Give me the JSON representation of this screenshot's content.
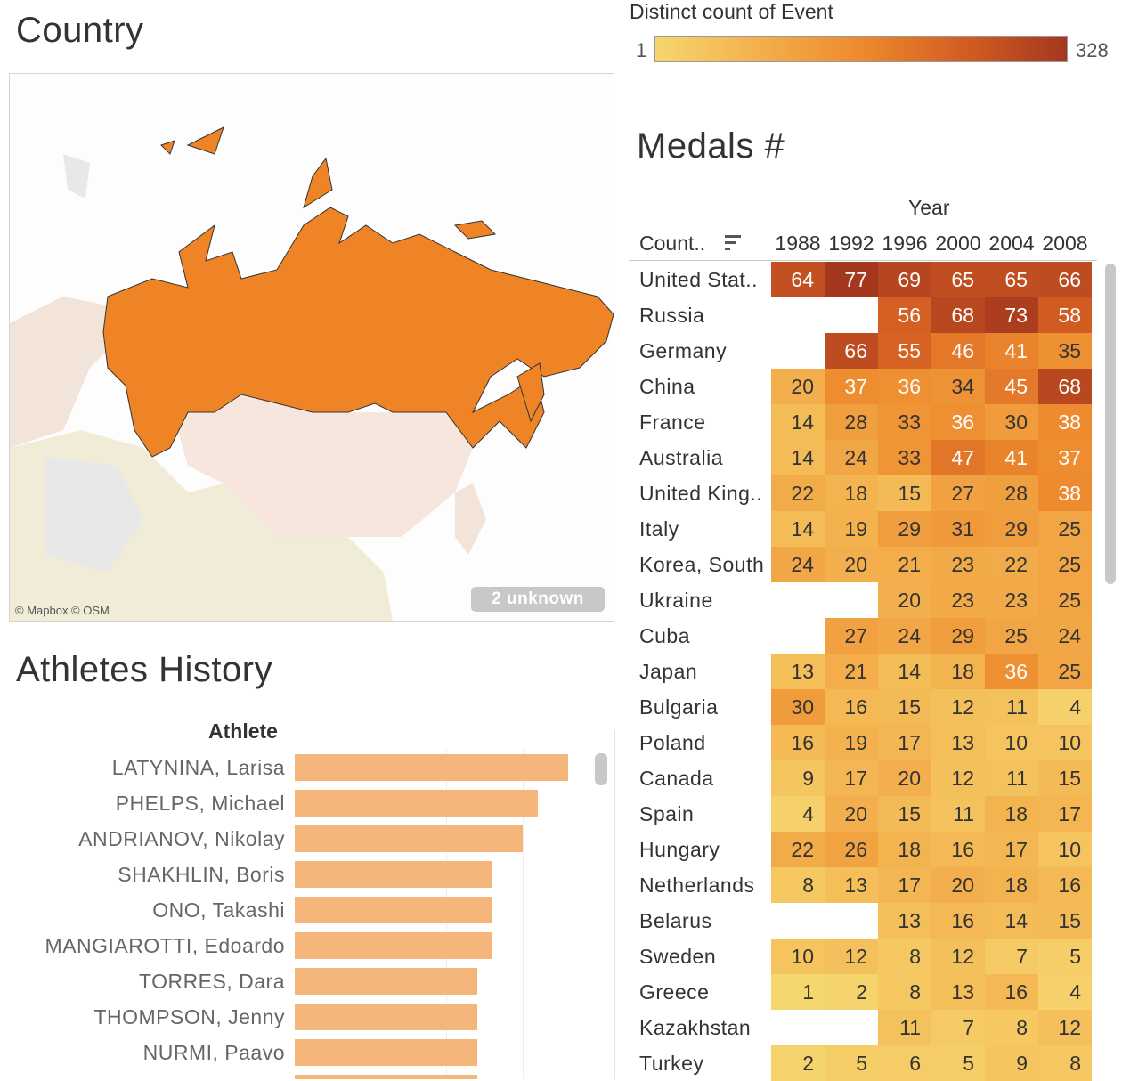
{
  "country_panel": {
    "title": "Country",
    "attribution": "© Mapbox © OSM",
    "unknown_badge": "2 unknown",
    "highlight_color": "#ef8427"
  },
  "legend": {
    "title": "Distinct count of Event",
    "min": "1",
    "max": "328"
  },
  "medals": {
    "title": "Medals #",
    "column_header": "Year",
    "row_header": "Count..",
    "sort_icon": "sort-descending-icon",
    "years": [
      "1988",
      "1992",
      "1996",
      "2000",
      "2004",
      "2008"
    ],
    "rows": [
      {
        "country": "United Stat..",
        "values": [
          64,
          77,
          69,
          65,
          65,
          66
        ]
      },
      {
        "country": "Russia",
        "values": [
          null,
          null,
          56,
          68,
          73,
          58
        ]
      },
      {
        "country": "Germany",
        "values": [
          null,
          66,
          55,
          46,
          41,
          35
        ]
      },
      {
        "country": "China",
        "values": [
          20,
          37,
          36,
          34,
          45,
          68
        ]
      },
      {
        "country": "France",
        "values": [
          14,
          28,
          33,
          36,
          30,
          38
        ]
      },
      {
        "country": "Australia",
        "values": [
          14,
          24,
          33,
          47,
          41,
          37
        ]
      },
      {
        "country": "United King..",
        "values": [
          22,
          18,
          15,
          27,
          28,
          38
        ]
      },
      {
        "country": "Italy",
        "values": [
          14,
          19,
          29,
          31,
          29,
          25
        ]
      },
      {
        "country": "Korea, South",
        "values": [
          24,
          20,
          21,
          23,
          22,
          25
        ]
      },
      {
        "country": "Ukraine",
        "values": [
          null,
          null,
          20,
          23,
          23,
          25
        ]
      },
      {
        "country": "Cuba",
        "values": [
          null,
          27,
          24,
          29,
          25,
          24
        ]
      },
      {
        "country": "Japan",
        "values": [
          13,
          21,
          14,
          18,
          36,
          25
        ]
      },
      {
        "country": "Bulgaria",
        "values": [
          30,
          16,
          15,
          12,
          11,
          4
        ]
      },
      {
        "country": "Poland",
        "values": [
          16,
          19,
          17,
          13,
          10,
          10
        ]
      },
      {
        "country": "Canada",
        "values": [
          9,
          17,
          20,
          12,
          11,
          15
        ]
      },
      {
        "country": "Spain",
        "values": [
          4,
          20,
          15,
          11,
          18,
          17
        ]
      },
      {
        "country": "Hungary",
        "values": [
          22,
          26,
          18,
          16,
          17,
          10
        ]
      },
      {
        "country": "Netherlands",
        "values": [
          8,
          13,
          17,
          20,
          18,
          16
        ]
      },
      {
        "country": "Belarus",
        "values": [
          null,
          null,
          13,
          16,
          14,
          15
        ]
      },
      {
        "country": "Sweden",
        "values": [
          10,
          12,
          8,
          12,
          7,
          5
        ]
      },
      {
        "country": "Greece",
        "values": [
          1,
          2,
          8,
          13,
          16,
          4
        ]
      },
      {
        "country": "Kazakhstan",
        "values": [
          null,
          null,
          11,
          7,
          8,
          12
        ]
      },
      {
        "country": "Turkey",
        "values": [
          2,
          5,
          6,
          5,
          9,
          8
        ]
      }
    ]
  },
  "athletes": {
    "title": "Athletes History",
    "column_header": "Athlete",
    "rows": [
      {
        "name": "LATYNINA, Larisa",
        "value": 18
      },
      {
        "name": "PHELPS, Michael",
        "value": 16
      },
      {
        "name": "ANDRIANOV, Nikolay",
        "value": 15
      },
      {
        "name": "SHAKHLIN, Boris",
        "value": 13
      },
      {
        "name": "ONO, Takashi",
        "value": 13
      },
      {
        "name": "MANGIAROTTI, Edoardo",
        "value": 13
      },
      {
        "name": "TORRES, Dara",
        "value": 12
      },
      {
        "name": "THOMPSON, Jenny",
        "value": 12
      },
      {
        "name": "NURMI, Paavo",
        "value": 12
      }
    ]
  }
}
